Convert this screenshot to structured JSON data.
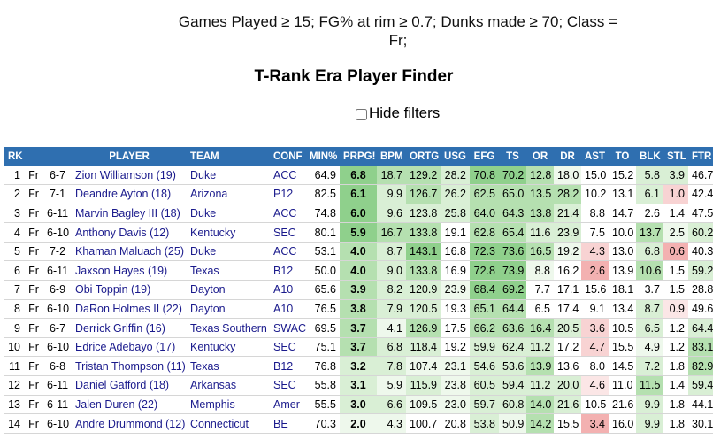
{
  "filter_text": "Games Played ≥ 15; FG% at rim ≥ 0.7; Dunks made ≥ 70; Class = Fr;",
  "page_title": "T-Rank Era Player Finder",
  "hide_filters_label": "Hide filters",
  "columns": [
    "RK",
    "",
    "",
    "PLAYER",
    "TEAM",
    "CONF",
    "MIN%",
    "PRPG!",
    "BPM",
    "ORTG",
    "USG",
    "EFG",
    "TS",
    "OR",
    "DR",
    "AST",
    "TO",
    "BLK",
    "STL",
    "FTR"
  ],
  "colors": {
    "header": "#2f6fb0",
    "green_dark": "#8fd08c",
    "green_mid": "#b5e0b0",
    "green_light": "#d9efd5",
    "green_pale": "#eef8ec",
    "red_mid": "#f3b1b1",
    "red_light": "#f8d3d3",
    "red_pale": "#fbe6e6"
  },
  "rows": [
    {
      "rk": "1",
      "cls": "Fr",
      "ht": "6-7",
      "player": "Zion Williamson (19)",
      "team": "Duke",
      "conf": "ACC",
      "min": "64.9",
      "prpg": "6.8",
      "bpm": "18.7",
      "ortg": "129.2",
      "usg": "28.2",
      "efg": "70.8",
      "ts": "70.2",
      "or": "12.8",
      "dr": "18.0",
      "ast": "15.0",
      "to": "15.2",
      "blk": "5.8",
      "stl": "3.9",
      "ftr": "46.7"
    },
    {
      "rk": "2",
      "cls": "Fr",
      "ht": "7-1",
      "player": "Deandre Ayton (18)",
      "team": "Arizona",
      "conf": "P12",
      "min": "82.5",
      "prpg": "6.1",
      "bpm": "9.9",
      "ortg": "126.7",
      "usg": "26.2",
      "efg": "62.5",
      "ts": "65.0",
      "or": "13.5",
      "dr": "28.2",
      "ast": "10.2",
      "to": "13.1",
      "blk": "6.1",
      "stl": "1.0",
      "ftr": "42.4"
    },
    {
      "rk": "3",
      "cls": "Fr",
      "ht": "6-11",
      "player": "Marvin Bagley III (18)",
      "team": "Duke",
      "conf": "ACC",
      "min": "74.8",
      "prpg": "6.0",
      "bpm": "9.6",
      "ortg": "123.8",
      "usg": "25.8",
      "efg": "64.0",
      "ts": "64.3",
      "or": "13.8",
      "dr": "21.4",
      "ast": "8.8",
      "to": "14.7",
      "blk": "2.6",
      "stl": "1.4",
      "ftr": "47.5"
    },
    {
      "rk": "4",
      "cls": "Fr",
      "ht": "6-10",
      "player": "Anthony Davis (12)",
      "team": "Kentucky",
      "conf": "SEC",
      "min": "80.1",
      "prpg": "5.9",
      "bpm": "16.7",
      "ortg": "133.8",
      "usg": "19.1",
      "efg": "62.8",
      "ts": "65.4",
      "or": "11.6",
      "dr": "23.9",
      "ast": "7.5",
      "to": "10.0",
      "blk": "13.7",
      "stl": "2.5",
      "ftr": "60.2"
    },
    {
      "rk": "5",
      "cls": "Fr",
      "ht": "7-2",
      "player": "Khaman Maluach (25)",
      "team": "Duke",
      "conf": "ACC",
      "min": "53.1",
      "prpg": "4.0",
      "bpm": "8.7",
      "ortg": "143.1",
      "usg": "16.8",
      "efg": "72.3",
      "ts": "73.6",
      "or": "16.5",
      "dr": "19.2",
      "ast": "4.3",
      "to": "13.0",
      "blk": "6.8",
      "stl": "0.6",
      "ftr": "40.3"
    },
    {
      "rk": "6",
      "cls": "Fr",
      "ht": "6-11",
      "player": "Jaxson Hayes (19)",
      "team": "Texas",
      "conf": "B12",
      "min": "50.0",
      "prpg": "4.0",
      "bpm": "9.0",
      "ortg": "133.8",
      "usg": "16.9",
      "efg": "72.8",
      "ts": "73.9",
      "or": "8.8",
      "dr": "16.2",
      "ast": "2.6",
      "to": "13.9",
      "blk": "10.6",
      "stl": "1.5",
      "ftr": "59.2"
    },
    {
      "rk": "7",
      "cls": "Fr",
      "ht": "6-9",
      "player": "Obi Toppin (19)",
      "team": "Dayton",
      "conf": "A10",
      "min": "65.6",
      "prpg": "3.9",
      "bpm": "8.2",
      "ortg": "120.9",
      "usg": "23.9",
      "efg": "68.4",
      "ts": "69.2",
      "or": "7.7",
      "dr": "17.1",
      "ast": "15.6",
      "to": "18.1",
      "blk": "3.7",
      "stl": "1.5",
      "ftr": "28.8"
    },
    {
      "rk": "8",
      "cls": "Fr",
      "ht": "6-10",
      "player": "DaRon Holmes II (22)",
      "team": "Dayton",
      "conf": "A10",
      "min": "76.5",
      "prpg": "3.8",
      "bpm": "7.9",
      "ortg": "120.5",
      "usg": "19.3",
      "efg": "65.1",
      "ts": "64.4",
      "or": "6.5",
      "dr": "17.4",
      "ast": "9.1",
      "to": "13.4",
      "blk": "8.7",
      "stl": "0.9",
      "ftr": "49.6"
    },
    {
      "rk": "9",
      "cls": "Fr",
      "ht": "6-7",
      "player": "Derrick Griffin (16)",
      "team": "Texas Southern",
      "conf": "SWAC",
      "min": "69.5",
      "prpg": "3.7",
      "bpm": "4.1",
      "ortg": "126.9",
      "usg": "17.5",
      "efg": "66.2",
      "ts": "63.6",
      "or": "16.4",
      "dr": "20.5",
      "ast": "3.6",
      "to": "10.5",
      "blk": "6.5",
      "stl": "1.2",
      "ftr": "64.4"
    },
    {
      "rk": "10",
      "cls": "Fr",
      "ht": "6-10",
      "player": "Edrice Adebayo (17)",
      "team": "Kentucky",
      "conf": "SEC",
      "min": "75.1",
      "prpg": "3.7",
      "bpm": "6.8",
      "ortg": "118.4",
      "usg": "19.2",
      "efg": "59.9",
      "ts": "62.4",
      "or": "11.2",
      "dr": "17.2",
      "ast": "4.7",
      "to": "15.5",
      "blk": "4.9",
      "stl": "1.2",
      "ftr": "83.1"
    },
    {
      "rk": "11",
      "cls": "Fr",
      "ht": "6-8",
      "player": "Tristan Thompson (11)",
      "team": "Texas",
      "conf": "B12",
      "min": "76.8",
      "prpg": "3.2",
      "bpm": "7.8",
      "ortg": "107.4",
      "usg": "23.1",
      "efg": "54.6",
      "ts": "53.6",
      "or": "13.9",
      "dr": "13.6",
      "ast": "8.0",
      "to": "14.5",
      "blk": "7.2",
      "stl": "1.8",
      "ftr": "82.9"
    },
    {
      "rk": "12",
      "cls": "Fr",
      "ht": "6-11",
      "player": "Daniel Gafford (18)",
      "team": "Arkansas",
      "conf": "SEC",
      "min": "55.8",
      "prpg": "3.1",
      "bpm": "5.9",
      "ortg": "115.9",
      "usg": "23.8",
      "efg": "60.5",
      "ts": "59.4",
      "or": "11.2",
      "dr": "20.0",
      "ast": "4.6",
      "to": "11.0",
      "blk": "11.5",
      "stl": "1.4",
      "ftr": "59.4"
    },
    {
      "rk": "13",
      "cls": "Fr",
      "ht": "6-11",
      "player": "Jalen Duren (22)",
      "team": "Memphis",
      "conf": "Amer",
      "min": "55.5",
      "prpg": "3.0",
      "bpm": "6.6",
      "ortg": "109.5",
      "usg": "23.0",
      "efg": "59.7",
      "ts": "60.8",
      "or": "14.0",
      "dr": "21.6",
      "ast": "10.5",
      "to": "21.6",
      "blk": "9.9",
      "stl": "1.8",
      "ftr": "44.1"
    },
    {
      "rk": "14",
      "cls": "Fr",
      "ht": "6-10",
      "player": "Andre Drummond (12)",
      "team": "Connecticut",
      "conf": "BE",
      "min": "70.3",
      "prpg": "2.0",
      "bpm": "4.3",
      "ortg": "100.7",
      "usg": "20.8",
      "efg": "53.8",
      "ts": "50.9",
      "or": "14.2",
      "dr": "15.5",
      "ast": "3.4",
      "to": "16.0",
      "blk": "9.9",
      "stl": "1.8",
      "ftr": "30.1"
    }
  ],
  "shading": {
    "prpg": [
      "green_dark",
      "green_dark",
      "green_dark",
      "green_dark",
      "green_mid",
      "green_mid",
      "green_mid",
      "green_mid",
      "green_mid",
      "green_mid",
      "green_light",
      "green_light",
      "green_light",
      "green_pale"
    ],
    "bpm": [
      "green_mid",
      "green_light",
      "green_light",
      "green_mid",
      "green_light",
      "green_light",
      "green_light",
      "green_light",
      "green_pale",
      "green_light",
      "green_light",
      "green_pale",
      "green_light",
      "green_pale"
    ],
    "ortg": [
      "green_mid",
      "green_mid",
      "green_light",
      "green_mid",
      "green_dark",
      "green_mid",
      "green_light",
      "green_light",
      "green_mid",
      "green_light",
      "green_pale",
      "green_light",
      "green_pale",
      ""
    ],
    "usg": [
      "green_light",
      "green_light",
      "green_light",
      "",
      "",
      "",
      "green_pale",
      "",
      "",
      "",
      "green_pale",
      "green_pale",
      "green_pale",
      ""
    ],
    "efg": [
      "green_dark",
      "green_mid",
      "green_mid",
      "green_mid",
      "green_dark",
      "green_dark",
      "green_dark",
      "green_mid",
      "green_mid",
      "green_light",
      "green_light",
      "green_light",
      "green_light",
      "green_light"
    ],
    "ts": [
      "green_dark",
      "green_mid",
      "green_mid",
      "green_mid",
      "green_dark",
      "green_dark",
      "green_dark",
      "green_mid",
      "green_mid",
      "green_light",
      "green_light",
      "green_light",
      "green_light",
      "green_pale"
    ],
    "or": [
      "green_mid",
      "green_mid",
      "green_mid",
      "green_light",
      "green_mid",
      "green_pale",
      "",
      "",
      "green_mid",
      "green_light",
      "green_mid",
      "green_light",
      "green_mid",
      "green_mid"
    ],
    "dr": [
      "green_pale",
      "green_mid",
      "green_light",
      "green_light",
      "green_pale",
      "",
      "",
      "",
      "green_light",
      "",
      "",
      "green_light",
      "green_light",
      ""
    ],
    "ast": [
      "",
      "",
      "",
      "",
      "red_light",
      "red_mid",
      "",
      "",
      "red_light",
      "red_light",
      "",
      "red_pale",
      "",
      "red_mid"
    ],
    "to": [
      "",
      "",
      "",
      "",
      "",
      "",
      "",
      "",
      "",
      "",
      "",
      "",
      "",
      ""
    ],
    "blk": [
      "green_light",
      "green_light",
      "",
      "green_mid",
      "green_light",
      "green_mid",
      "",
      "green_light",
      "green_light",
      "green_pale",
      "green_light",
      "green_mid",
      "green_light",
      "green_light"
    ],
    "stl": [
      "green_light",
      "red_light",
      "",
      "green_pale",
      "red_mid",
      "",
      "",
      "red_pale",
      "",
      "",
      "",
      "",
      "",
      ""
    ],
    "ftr": [
      "",
      "",
      "",
      "green_light",
      "",
      "green_light",
      "",
      "",
      "green_light",
      "green_mid",
      "green_mid",
      "green_light",
      "",
      ""
    ]
  }
}
